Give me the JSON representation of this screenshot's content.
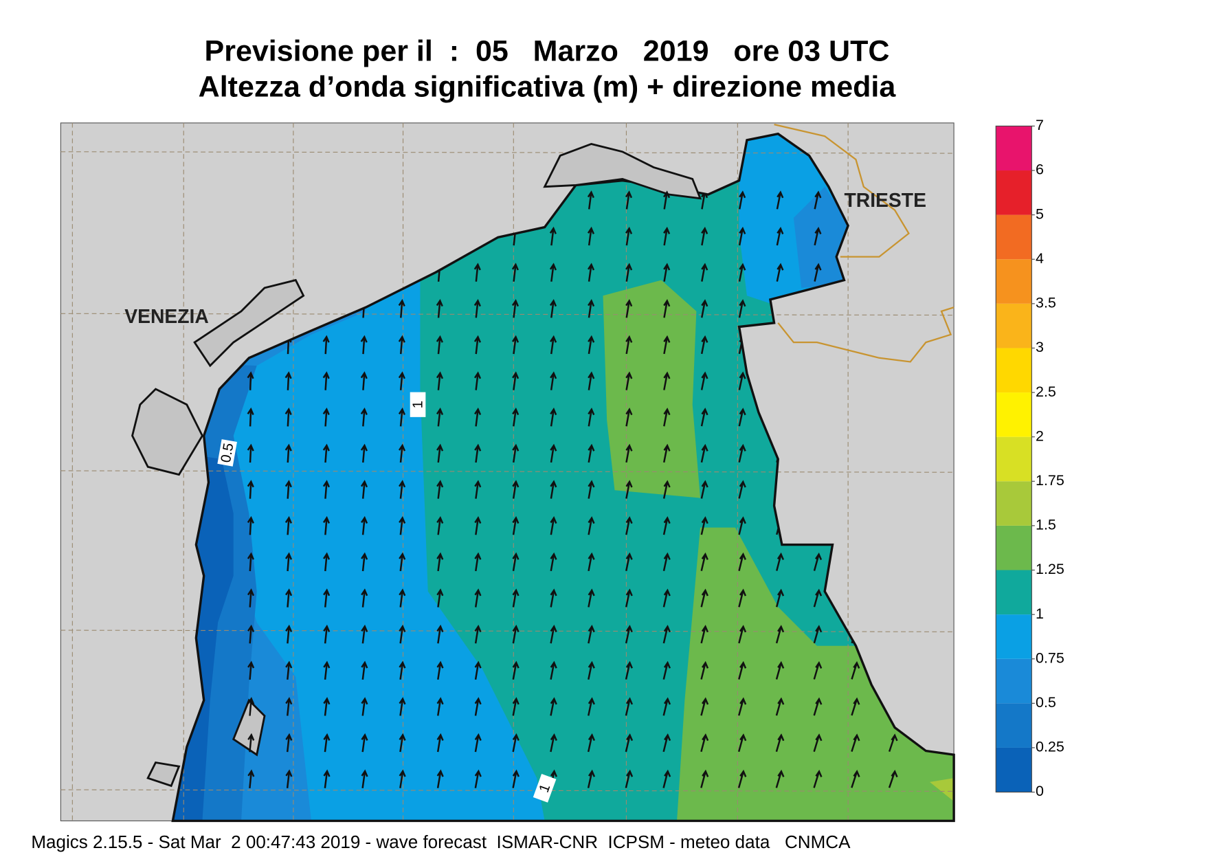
{
  "header": {
    "title": "Previsione per il  :  05   Marzo   2019   ore 03 UTC",
    "subtitle": "Altezza d’onda significativa (m) + direzione media"
  },
  "map": {
    "cities": [
      "VENEZIA",
      "TRIESTE"
    ],
    "contour_labels": [
      1,
      0.5,
      1
    ]
  },
  "legend": {
    "levels": [
      0,
      0.25,
      0.5,
      0.75,
      1,
      1.25,
      1.5,
      1.75,
      2,
      2.5,
      3,
      3.5,
      4,
      5,
      6,
      7
    ],
    "colors": [
      "#0a62b8",
      "#1478c8",
      "#1a8ad8",
      "#0aa0e4",
      "#10a99c",
      "#6cb94c",
      "#a8c93a",
      "#d8e024",
      "#fff200",
      "#ffd800",
      "#fab41a",
      "#f6921e",
      "#f26b22",
      "#e6202a",
      "#e8146c"
    ]
  },
  "footer": "Magics 2.15.5 - Sat Mar  2 00:47:43 2019 - wave forecast  ISMAR-CNR  ICPSM - meteo data   CNMCA"
}
